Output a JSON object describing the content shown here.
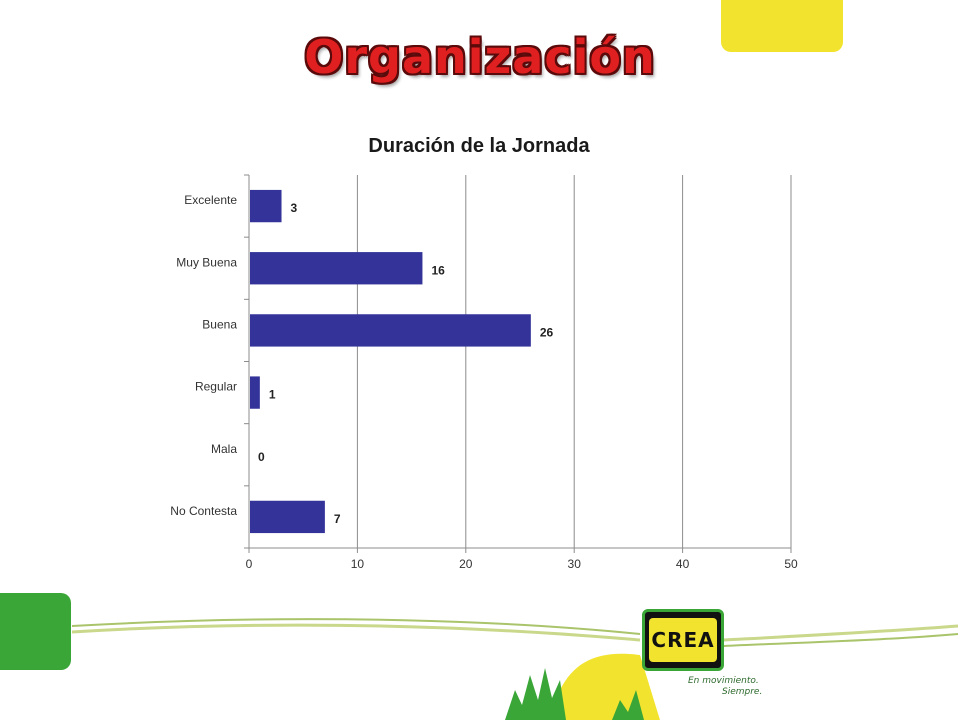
{
  "slide": {
    "title": "Organización"
  },
  "logo": {
    "text": "CREA",
    "tagline_line1": "En movimiento.",
    "tagline_line2": "Siempre."
  },
  "colors": {
    "title_red": "#e02020",
    "bar": "#333399",
    "accent_yellow": "#f2e42e",
    "accent_green": "#3aa637"
  },
  "chart_data": {
    "type": "bar",
    "orientation": "horizontal",
    "title": "Duración de la Jornada",
    "categories": [
      "Excelente",
      "Muy Buena",
      "Buena",
      "Regular",
      "Mala",
      "No Contesta"
    ],
    "values": [
      3,
      16,
      26,
      1,
      0,
      7
    ],
    "xlim": [
      0,
      50
    ],
    "xticks": [
      0,
      10,
      20,
      30,
      40,
      50
    ],
    "grid": true,
    "legend": false,
    "data_labels": true
  }
}
